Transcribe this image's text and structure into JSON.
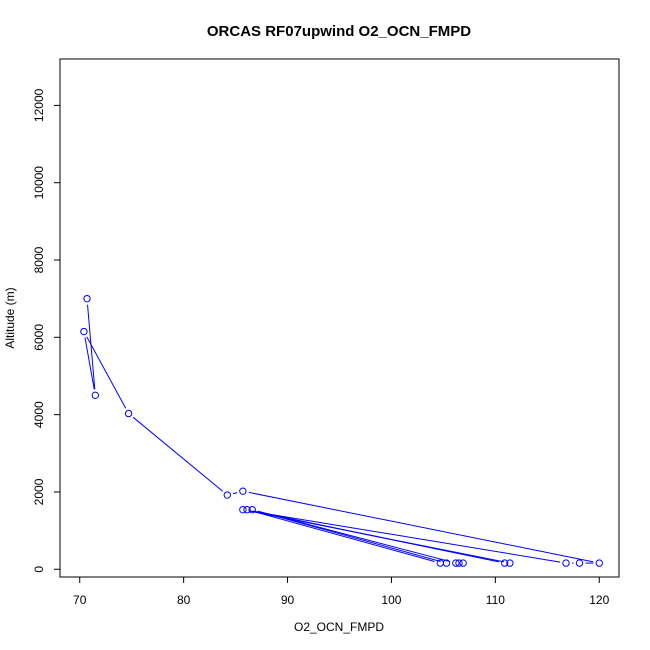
{
  "chart_data": {
    "type": "line",
    "title": "ORCAS RF07upwind O2_OCN_FMPD",
    "xlabel": "O2_OCN_FMPD",
    "ylabel": "Altitude (m)",
    "xlim": [
      68.1,
      121.9
    ],
    "ylim": [
      -200,
      13200
    ],
    "x_ticks": [
      70,
      80,
      90,
      100,
      110,
      120
    ],
    "y_ticks": [
      0,
      2000,
      4000,
      6000,
      8000,
      10000,
      12000
    ],
    "grid": false,
    "legend": "none",
    "series": [
      {
        "color": "#0000ff",
        "marker": "open-circle",
        "points": [
          [
            70.7,
            7000
          ],
          [
            71.5,
            4500
          ],
          [
            70.4,
            6150
          ],
          [
            74.7,
            4030
          ],
          [
            84.2,
            1920
          ],
          [
            85.7,
            2020
          ],
          [
            120.0,
            160
          ],
          [
            118.1,
            160
          ],
          [
            116.8,
            160
          ],
          [
            85.7,
            1540
          ],
          [
            111.4,
            160
          ],
          [
            110.9,
            160
          ],
          [
            86.1,
            1540
          ],
          [
            104.7,
            160
          ],
          [
            105.3,
            160
          ],
          [
            86.6,
            1540
          ],
          [
            106.2,
            160
          ],
          [
            106.5,
            160
          ],
          [
            106.9,
            160
          ]
        ]
      }
    ]
  }
}
